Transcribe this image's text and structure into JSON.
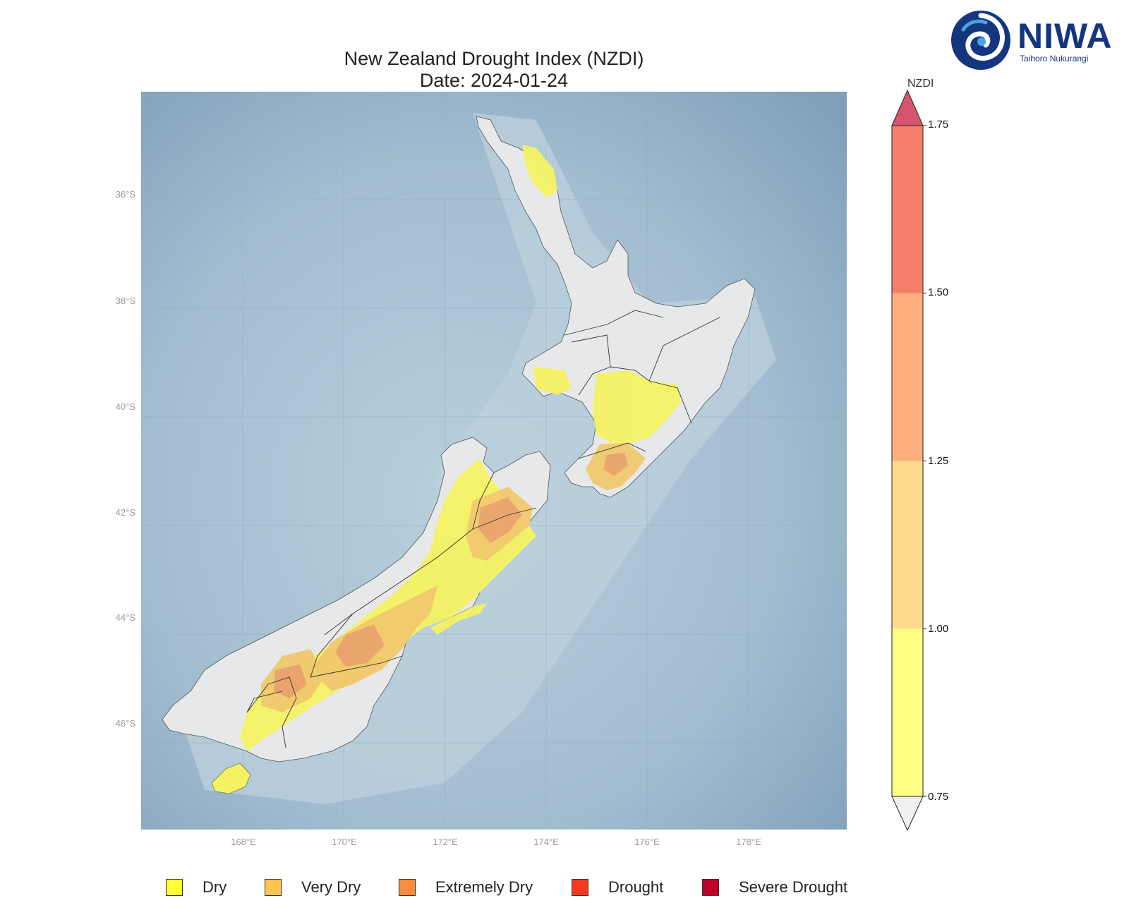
{
  "title": {
    "line1": "New Zealand Drought Index (NZDI)",
    "line2": "Date: 2024-01-24"
  },
  "logo": {
    "brand": "NIWA",
    "tagline": "Taihoro Nukurangi",
    "icon": "niwa-swirl-icon"
  },
  "map": {
    "lat_labels": [
      "36°S",
      "38°S",
      "40°S",
      "42°S",
      "44°S",
      "46°S"
    ],
    "lon_labels": [
      "168°E",
      "170°E",
      "172°E",
      "174°E",
      "176°E",
      "178°E"
    ],
    "colors": {
      "ocean": "#a9c2d3",
      "land": "#e6e8ea",
      "dry": "#f4f263",
      "very_dry": "#f0c86e",
      "extremely_dry": "#e9a36d",
      "boundary": "#333333"
    }
  },
  "colorbar": {
    "title": "NZDI",
    "ticks": [
      "1.75",
      "1.50",
      "1.25",
      "1.00",
      "0.75"
    ],
    "bands": [
      {
        "from": 0.75,
        "to": 1.0,
        "color": "#fefe80"
      },
      {
        "from": 1.0,
        "to": 1.25,
        "color": "#fed98e"
      },
      {
        "from": 1.25,
        "to": 1.5,
        "color": "#fdae7b"
      },
      {
        "from": 1.5,
        "to": 1.75,
        "color": "#f47f6b"
      }
    ],
    "over_color": "#d6546e",
    "under_color": "#f0f0f0"
  },
  "legend": [
    {
      "label": "Dry",
      "color": "#ffff33"
    },
    {
      "label": "Very Dry",
      "color": "#fec44f"
    },
    {
      "label": "Extremely Dry",
      "color": "#fd8d3c"
    },
    {
      "label": "Drought",
      "color": "#f03b20"
    },
    {
      "label": "Severe Drought",
      "color": "#bd0026"
    }
  ]
}
